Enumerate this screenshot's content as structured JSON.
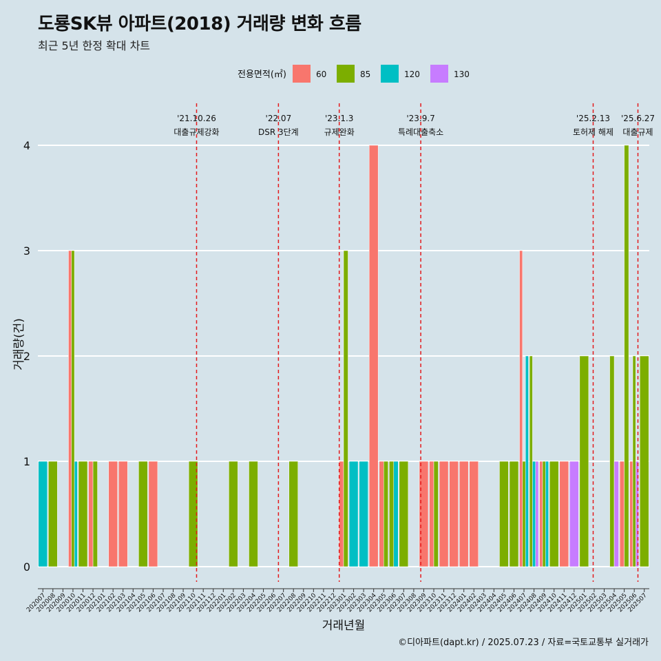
{
  "header": {
    "title": "도룡SK뷰 아파트(2018) 거래량 변화 흐름",
    "subtitle": "최근 5년 한정 확대 차트",
    "credit": "©디아파트(dapt.kr) / 2025.07.23 / 자료=국토교통부 실거래가"
  },
  "colors": {
    "background": "#d5e3ea",
    "grid": "#ffffff",
    "event_line": "#e41a1c",
    "60": "#f8766d",
    "85": "#7cae00",
    "120": "#00bfc4",
    "130": "#c77cff"
  },
  "chart_data": {
    "type": "bar",
    "xlabel": "거래년월",
    "ylabel": "거래량(건)",
    "ylim": [
      0,
      4
    ],
    "yticks": [
      0,
      1,
      2,
      3,
      4
    ],
    "grid": true,
    "legend": {
      "title": "전용면적(㎡)",
      "position": "top",
      "entries": [
        "60",
        "85",
        "120",
        "130"
      ]
    },
    "categories": [
      "202007",
      "202008",
      "202009",
      "202010",
      "202011",
      "202012",
      "202101",
      "202102",
      "202103",
      "202104",
      "202105",
      "202106",
      "202107",
      "202108",
      "202109",
      "202110",
      "202111",
      "202112",
      "202201",
      "202202",
      "202203",
      "202204",
      "202205",
      "202206",
      "202207",
      "202208",
      "202209",
      "202210",
      "202211",
      "202212",
      "202301",
      "202302",
      "202303",
      "202304",
      "202305",
      "202306",
      "202307",
      "202308",
      "202309",
      "202310",
      "202311",
      "202312",
      "202401",
      "202402",
      "202403",
      "202404",
      "202405",
      "202406",
      "202407",
      "202408",
      "202409",
      "202410",
      "202411",
      "202412",
      "202501",
      "202502",
      "202503",
      "202504",
      "202505",
      "202506",
      "202507"
    ],
    "series": [
      {
        "name": "60",
        "values": [
          0,
          0,
          0,
          3,
          0,
          1,
          0,
          1,
          1,
          0,
          0,
          1,
          0,
          0,
          0,
          0,
          0,
          0,
          0,
          0,
          0,
          0,
          0,
          0,
          0,
          0,
          0,
          0,
          0,
          0,
          1,
          0,
          0,
          4,
          1,
          0,
          0,
          0,
          1,
          1,
          1,
          1,
          1,
          1,
          0,
          0,
          0,
          0,
          3,
          0,
          1,
          0,
          1,
          0,
          0,
          0,
          0,
          0,
          1,
          1,
          0
        ]
      },
      {
        "name": "85",
        "values": [
          0,
          1,
          0,
          3,
          1,
          1,
          0,
          0,
          0,
          0,
          1,
          0,
          0,
          0,
          0,
          1,
          0,
          0,
          0,
          1,
          0,
          1,
          0,
          0,
          0,
          1,
          0,
          0,
          0,
          0,
          3,
          0,
          0,
          0,
          1,
          1,
          1,
          0,
          0,
          1,
          0,
          0,
          0,
          0,
          0,
          0,
          1,
          1,
          1,
          2,
          1,
          1,
          0,
          0,
          2,
          0,
          0,
          2,
          4,
          2,
          2
        ]
      },
      {
        "name": "120",
        "values": [
          1,
          0,
          0,
          1,
          0,
          0,
          0,
          0,
          0,
          0,
          0,
          0,
          0,
          0,
          0,
          0,
          0,
          0,
          0,
          0,
          0,
          0,
          0,
          0,
          0,
          0,
          0,
          0,
          0,
          0,
          0,
          1,
          1,
          0,
          0,
          1,
          0,
          0,
          0,
          0,
          0,
          0,
          0,
          0,
          0,
          0,
          0,
          0,
          2,
          1,
          1,
          0,
          0,
          0,
          0,
          0,
          0,
          0,
          0,
          0,
          0
        ]
      },
      {
        "name": "130",
        "values": [
          0,
          0,
          0,
          0,
          0,
          0,
          0,
          0,
          0,
          0,
          0,
          0,
          0,
          0,
          0,
          0,
          0,
          0,
          0,
          0,
          0,
          0,
          0,
          0,
          0,
          0,
          0,
          0,
          0,
          0,
          0,
          0,
          0,
          0,
          0,
          0,
          0,
          0,
          0,
          0,
          0,
          0,
          0,
          0,
          0,
          0,
          0,
          0,
          0,
          1,
          0,
          0,
          0,
          1,
          0,
          0,
          0,
          1,
          0,
          1,
          0
        ]
      }
    ],
    "events": [
      {
        "month": "202110",
        "day": 26,
        "date_label": "'21.10.26",
        "label": "대출규제강화"
      },
      {
        "month": "202207",
        "day": 1,
        "date_label": "'22.07",
        "label": "DSR 3단계"
      },
      {
        "month": "202301",
        "day": 3,
        "date_label": "'23.1.3",
        "label": "규제완화"
      },
      {
        "month": "202309",
        "day": 7,
        "date_label": "'23.9.7",
        "label": "특례대출축소"
      },
      {
        "month": "202502",
        "day": 13,
        "date_label": "'25.2.13",
        "label": "토허제 해제"
      },
      {
        "month": "202506",
        "day": 27,
        "date_label": "'25.6.27",
        "label": "대출규제"
      }
    ]
  }
}
